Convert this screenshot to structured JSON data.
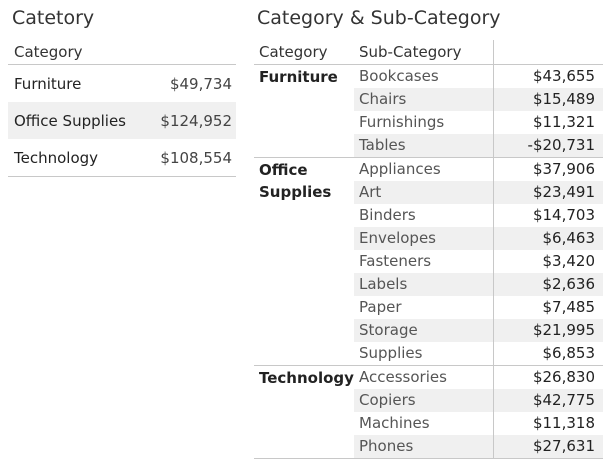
{
  "chart_data": [
    {
      "type": "table",
      "title": "Catetory",
      "columns": [
        "Category",
        ""
      ],
      "rows": [
        {
          "category": "Furniture",
          "value": "$49,734"
        },
        {
          "category": "Office Supplies",
          "value": "$124,952"
        },
        {
          "category": "Technology",
          "value": "$108,554"
        }
      ]
    },
    {
      "type": "table",
      "title": "Category & Sub-Category",
      "columns": [
        "Category",
        "Sub-Category",
        ""
      ],
      "groups": [
        {
          "category": "Furniture",
          "rows": [
            {
              "sub": "Bookcases",
              "value": "$43,655"
            },
            {
              "sub": "Chairs",
              "value": "$15,489"
            },
            {
              "sub": "Furnishings",
              "value": "$11,321"
            },
            {
              "sub": "Tables",
              "value": "-$20,731"
            }
          ]
        },
        {
          "category": "Office Supplies",
          "rows": [
            {
              "sub": "Appliances",
              "value": "$37,906"
            },
            {
              "sub": "Art",
              "value": "$23,491"
            },
            {
              "sub": "Binders",
              "value": "$14,703"
            },
            {
              "sub": "Envelopes",
              "value": "$6,463"
            },
            {
              "sub": "Fasteners",
              "value": "$3,420"
            },
            {
              "sub": "Labels",
              "value": "$2,636"
            },
            {
              "sub": "Paper",
              "value": "$7,485"
            },
            {
              "sub": "Storage",
              "value": "$21,995"
            },
            {
              "sub": "Supplies",
              "value": "$6,853"
            }
          ]
        },
        {
          "category": "Technology",
          "rows": [
            {
              "sub": "Accessories",
              "value": "$26,830"
            },
            {
              "sub": "Copiers",
              "value": "$42,775"
            },
            {
              "sub": "Machines",
              "value": "$11,318"
            },
            {
              "sub": "Phones",
              "value": "$27,631"
            }
          ]
        }
      ]
    }
  ]
}
